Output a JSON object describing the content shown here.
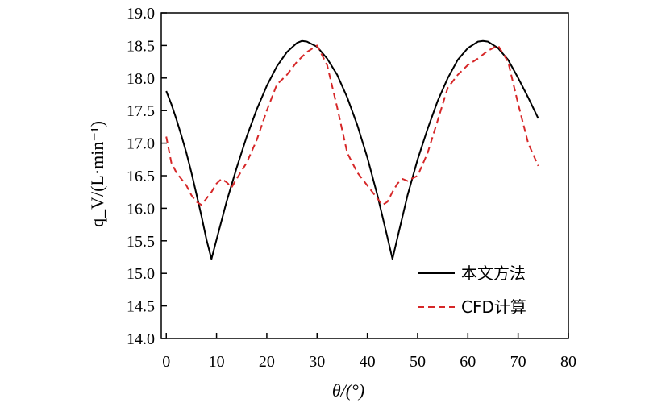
{
  "chart_data": {
    "type": "line",
    "xlabel": "θ/(°)",
    "ylabel": "q_V/(L·min⁻¹)",
    "xlim": [
      -1,
      80
    ],
    "ylim": [
      14.0,
      19.0
    ],
    "xticks": [
      "0",
      "10",
      "20",
      "30",
      "40",
      "50",
      "60",
      "70",
      "80"
    ],
    "yticks": [
      "14.0",
      "14.5",
      "15.0",
      "15.5",
      "16.0",
      "16.5",
      "17.0",
      "17.5",
      "18.0",
      "18.5",
      "19.0"
    ],
    "legend_position": "bottom-right",
    "series": [
      {
        "name": "本文方法",
        "style": "solid",
        "color": "#000000",
        "x": [
          0,
          1,
          2,
          3,
          4,
          5,
          6,
          7,
          8,
          9,
          10,
          12,
          14,
          16,
          18,
          20,
          22,
          24,
          26,
          27,
          28,
          30,
          32,
          34,
          36,
          38,
          40,
          42,
          44,
          45,
          46,
          48,
          50,
          52,
          54,
          56,
          58,
          60,
          62,
          63,
          64,
          66,
          68,
          70,
          72,
          74
        ],
        "y": [
          17.8,
          17.6,
          17.37,
          17.12,
          16.85,
          16.55,
          16.22,
          15.88,
          15.52,
          15.22,
          15.52,
          16.1,
          16.62,
          17.1,
          17.52,
          17.88,
          18.18,
          18.4,
          18.54,
          18.57,
          18.56,
          18.48,
          18.3,
          18.05,
          17.7,
          17.28,
          16.78,
          16.2,
          15.55,
          15.22,
          15.55,
          16.2,
          16.75,
          17.22,
          17.65,
          18.0,
          18.28,
          18.46,
          18.56,
          18.57,
          18.56,
          18.46,
          18.28,
          18.0,
          17.7,
          17.38
        ]
      },
      {
        "name": "CFD计算",
        "style": "dashed",
        "color": "#d62728",
        "x": [
          0,
          1,
          2,
          3,
          4,
          5,
          6,
          7,
          8,
          9,
          10,
          11,
          12,
          13,
          14,
          16,
          18,
          20,
          22,
          24,
          26,
          28,
          30,
          32,
          34,
          36,
          38,
          40,
          42,
          43,
          44,
          45,
          46,
          47,
          48,
          50,
          52,
          54,
          56,
          58,
          60,
          62,
          64,
          66,
          68,
          70,
          72,
          74
        ],
        "y": [
          17.1,
          16.7,
          16.55,
          16.45,
          16.35,
          16.2,
          16.1,
          16.05,
          16.15,
          16.25,
          16.38,
          16.45,
          16.4,
          16.32,
          16.45,
          16.7,
          17.05,
          17.5,
          17.9,
          18.05,
          18.25,
          18.4,
          18.5,
          18.2,
          17.55,
          16.85,
          16.55,
          16.35,
          16.15,
          16.05,
          16.1,
          16.25,
          16.38,
          16.45,
          16.42,
          16.5,
          16.85,
          17.35,
          17.85,
          18.05,
          18.2,
          18.3,
          18.42,
          18.5,
          18.25,
          17.6,
          17.0,
          16.65
        ]
      }
    ]
  }
}
